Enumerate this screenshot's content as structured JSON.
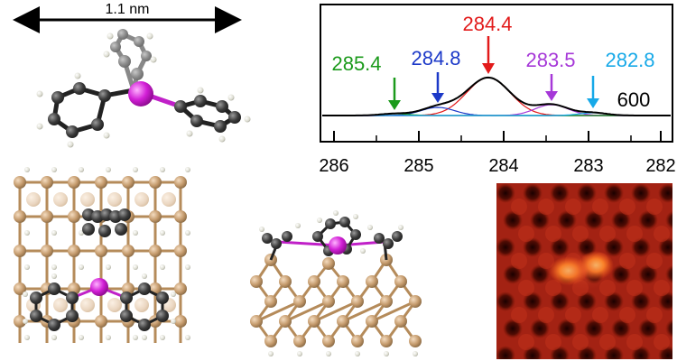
{
  "molecule_top": {
    "width_label": "1.1 nm"
  },
  "xps_spectrum": {
    "peak_labels": [
      {
        "value": "285.4",
        "color": "#1b9a1b"
      },
      {
        "value": "284.8",
        "color": "#1c39c8"
      },
      {
        "value": "284.4",
        "color": "#e21a1a"
      },
      {
        "value": "283.5",
        "color": "#a638d8"
      },
      {
        "value": "282.8",
        "color": "#17a9e8"
      }
    ],
    "temperature_label": "600",
    "x_ticks": [
      "286",
      "285",
      "284",
      "283",
      "282"
    ]
  },
  "colors": {
    "carbon": "#3c3c3c",
    "hydrogen": "#dcdcd0",
    "phosphorus": "#d21fd6",
    "silicon": "#c49a6c",
    "stm_background": "#8b1a10"
  },
  "stm_image": {
    "has_scale_bar": false
  }
}
